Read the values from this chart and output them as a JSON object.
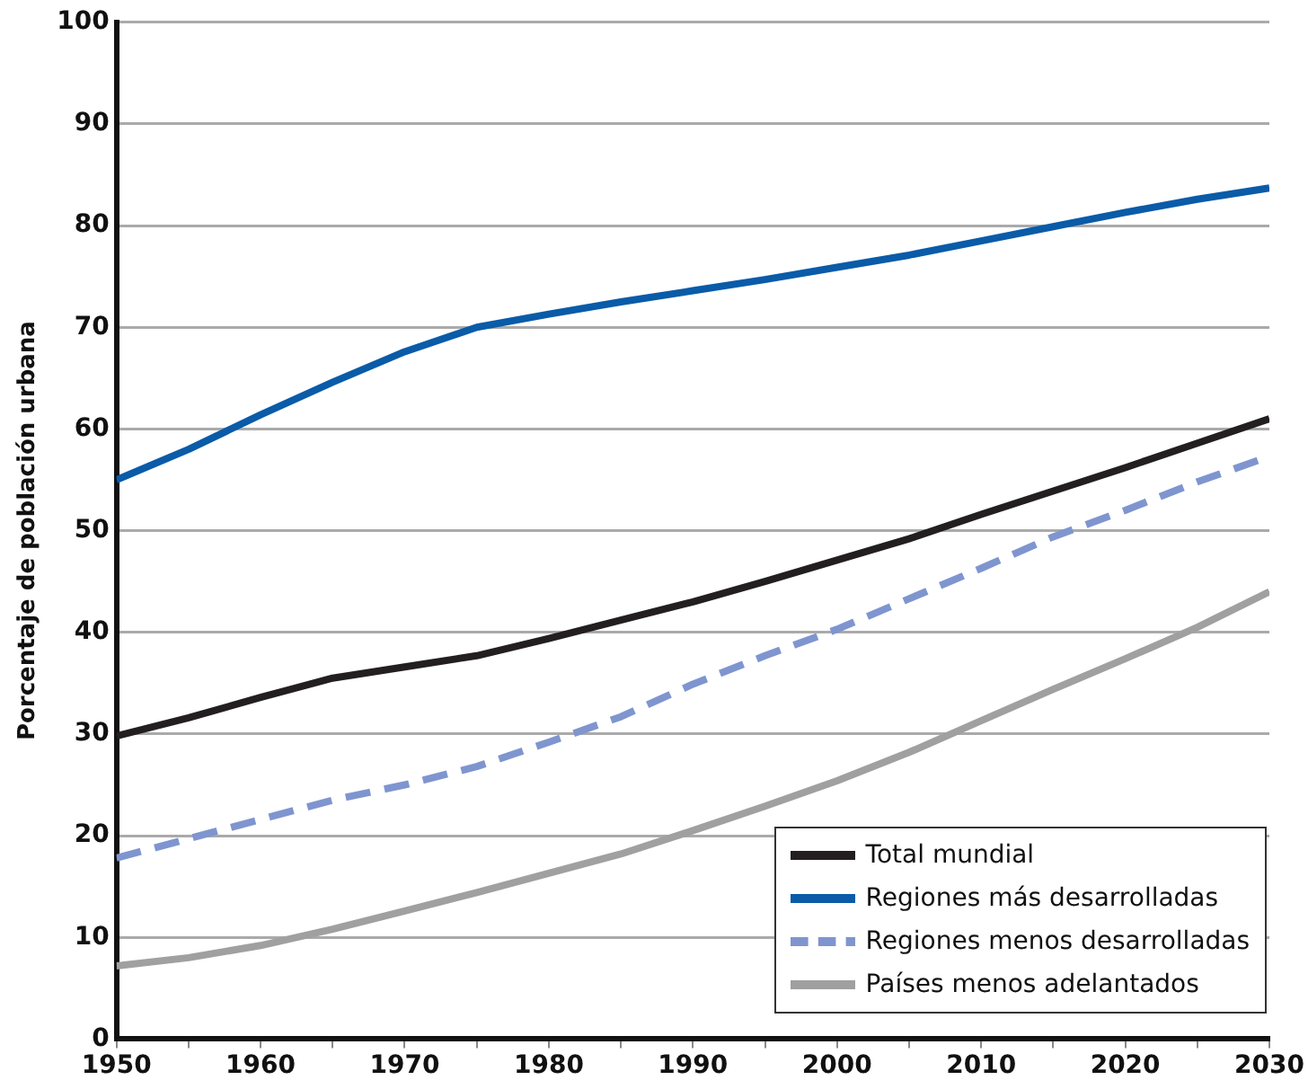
{
  "chart_data": {
    "type": "line",
    "ylabel": "Porcentaje de población urbana",
    "x": [
      1950,
      1955,
      1960,
      1965,
      1970,
      1975,
      1980,
      1985,
      1990,
      1995,
      2000,
      2005,
      2010,
      2015,
      2020,
      2025,
      2030
    ],
    "series": [
      {
        "name": "Total mundial",
        "color": "#231f20",
        "values": [
          29.8,
          31.6,
          33.6,
          35.5,
          36.6,
          37.7,
          39.4,
          41.2,
          43.0,
          45.0,
          47.1,
          49.2,
          51.6,
          53.9,
          56.2,
          58.6,
          61.0
        ]
      },
      {
        "name": "Regiones más desarrolladas",
        "color": "#0a5ba8",
        "values": [
          55.0,
          58.0,
          61.4,
          64.6,
          67.6,
          70.0,
          71.3,
          72.5,
          73.6,
          74.7,
          75.9,
          77.1,
          78.5,
          79.9,
          81.3,
          82.6,
          83.7
        ]
      },
      {
        "name": "Regiones menos desarrolladas",
        "color": "#7f95cf",
        "line_style": "dashed",
        "values": [
          17.8,
          19.7,
          21.6,
          23.5,
          25.0,
          26.8,
          29.2,
          31.7,
          34.9,
          37.7,
          40.3,
          43.3,
          46.3,
          49.4,
          52.0,
          54.8,
          57.3
        ]
      },
      {
        "name": "Países menos adelantados",
        "color": "#a0a0a0",
        "values": [
          7.2,
          8.0,
          9.2,
          10.8,
          12.6,
          14.4,
          16.3,
          18.2,
          20.5,
          22.9,
          25.4,
          28.2,
          31.3,
          34.4,
          37.4,
          40.5,
          44.0
        ]
      }
    ],
    "xlim": [
      1950,
      2030
    ],
    "xticks": [
      1950,
      {
        "value": 1955,
        "label": null
      },
      1960,
      {
        "value": 1965,
        "label": null
      },
      1970,
      {
        "value": 1975,
        "label": null
      },
      1980,
      {
        "value": 1985,
        "label": null
      },
      1990,
      {
        "value": 1995,
        "label": null
      },
      2000,
      {
        "value": 2005,
        "label": null
      },
      2010,
      {
        "value": 2015,
        "label": null
      },
      2020,
      {
        "value": 2025,
        "label": null
      },
      2030
    ],
    "ylim": [
      0,
      100
    ],
    "yticks": [
      0,
      10,
      20,
      30,
      40,
      50,
      60,
      70,
      80,
      90,
      100
    ],
    "grid": "y",
    "legend": "bottom right",
    "marker": "none",
    "line_style": "solid"
  }
}
